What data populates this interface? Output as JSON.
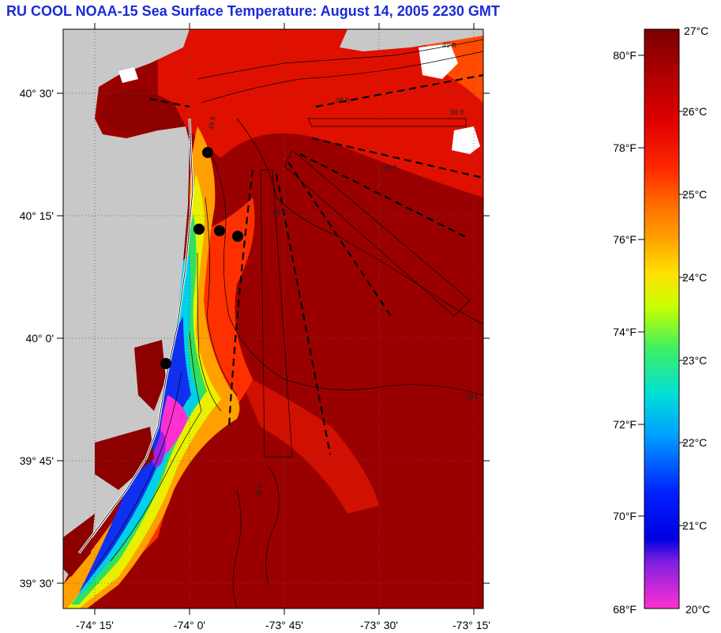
{
  "title": "RU COOL  NOAA-15  Sea Surface Temperature:  August 14, 2005 2230 GMT",
  "map": {
    "lat_labels": [
      "40° 30'",
      "40° 15'",
      "40° 0'",
      "39° 45'",
      "39° 30'"
    ],
    "lon_labels": [
      "-74° 15'",
      "-74° 0'",
      "-73° 45'",
      "-73° 30'",
      "-73° 15'"
    ],
    "contour_labels": [
      "49 ft",
      "98 ft",
      "98 ft",
      "98 ft",
      "98 ft",
      "98 ft",
      "49 ft",
      "164"
    ],
    "station_count": 5,
    "colors": {
      "land": "#c8c8c8",
      "warm": "#8c0000",
      "mid": "#e02000",
      "cool_orange": "#ff8000",
      "yellow": "#e8f000",
      "green": "#30e060",
      "cyan": "#00d0e8",
      "blue": "#1030f0",
      "magenta": "#ff30d0"
    }
  },
  "colorbar": {
    "top_celsius": "27°C",
    "bottom_celsius": "20°C",
    "bottom_fahrenheit": "68°F",
    "fahrenheit_labels": [
      "80°F",
      "78°F",
      "76°F",
      "74°F",
      "72°F",
      "70°F"
    ],
    "celsius_labels": [
      "26°C",
      "25°C",
      "24°C",
      "23°C",
      "22°C",
      "21°C"
    ]
  }
}
